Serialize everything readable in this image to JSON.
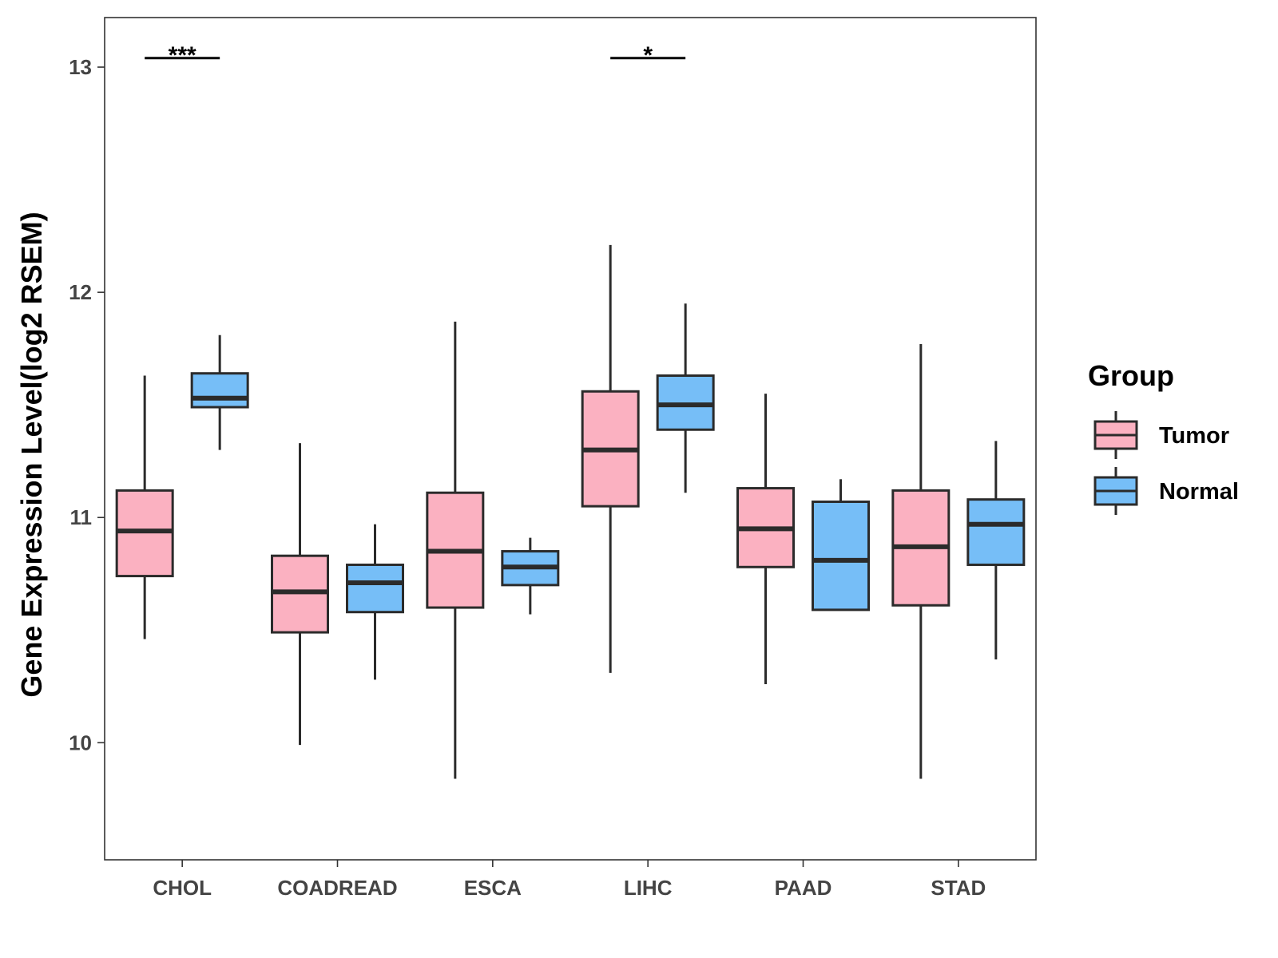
{
  "chart_data": {
    "type": "boxplot",
    "title": "",
    "xlabel": "",
    "ylabel": "Gene Expression Level(log2 RSEM)",
    "ylim": [
      9.48,
      13.22
    ],
    "yticks": [
      10,
      11,
      12,
      13
    ],
    "grid": false,
    "categories": [
      "CHOL",
      "COADREAD",
      "ESCA",
      "LIHC",
      "PAAD",
      "STAD"
    ],
    "legend": {
      "title": "Group",
      "position": "right",
      "entries": [
        {
          "name": "Tumor",
          "color": "#FBB1C1"
        },
        {
          "name": "Normal",
          "color": "#76BEF7"
        }
      ]
    },
    "series": [
      {
        "name": "Tumor",
        "color": "#FBB1C1",
        "boxes": [
          {
            "category": "CHOL",
            "min": 10.46,
            "q1": 10.74,
            "median": 10.94,
            "q3": 11.12,
            "max": 11.63
          },
          {
            "category": "COADREAD",
            "min": 9.99,
            "q1": 10.49,
            "median": 10.67,
            "q3": 10.83,
            "max": 11.33
          },
          {
            "category": "ESCA",
            "min": 9.84,
            "q1": 10.6,
            "median": 10.85,
            "q3": 11.11,
            "max": 11.87
          },
          {
            "category": "LIHC",
            "min": 10.31,
            "q1": 11.05,
            "median": 11.3,
            "q3": 11.56,
            "max": 12.21
          },
          {
            "category": "PAAD",
            "min": 10.26,
            "q1": 10.78,
            "median": 10.95,
            "q3": 11.13,
            "max": 11.55
          },
          {
            "category": "STAD",
            "min": 9.84,
            "q1": 10.61,
            "median": 10.87,
            "q3": 11.12,
            "max": 11.77
          }
        ]
      },
      {
        "name": "Normal",
        "color": "#76BEF7",
        "boxes": [
          {
            "category": "CHOL",
            "min": 11.3,
            "q1": 11.49,
            "median": 11.53,
            "q3": 11.64,
            "max": 11.81
          },
          {
            "category": "COADREAD",
            "min": 10.28,
            "q1": 10.58,
            "median": 10.71,
            "q3": 10.79,
            "max": 10.97
          },
          {
            "category": "ESCA",
            "min": 10.57,
            "q1": 10.7,
            "median": 10.78,
            "q3": 10.85,
            "max": 10.91
          },
          {
            "category": "LIHC",
            "min": 11.11,
            "q1": 11.39,
            "median": 11.5,
            "q3": 11.63,
            "max": 11.95
          },
          {
            "category": "PAAD",
            "min": 10.59,
            "q1": 10.59,
            "median": 10.81,
            "q3": 11.07,
            "max": 11.17
          },
          {
            "category": "STAD",
            "min": 10.37,
            "q1": 10.79,
            "median": 10.97,
            "q3": 11.08,
            "max": 11.34
          }
        ]
      }
    ],
    "annotations": [
      {
        "category": "CHOL",
        "label": "***",
        "y": 13.04
      },
      {
        "category": "LIHC",
        "label": "*",
        "y": 13.04
      }
    ]
  }
}
